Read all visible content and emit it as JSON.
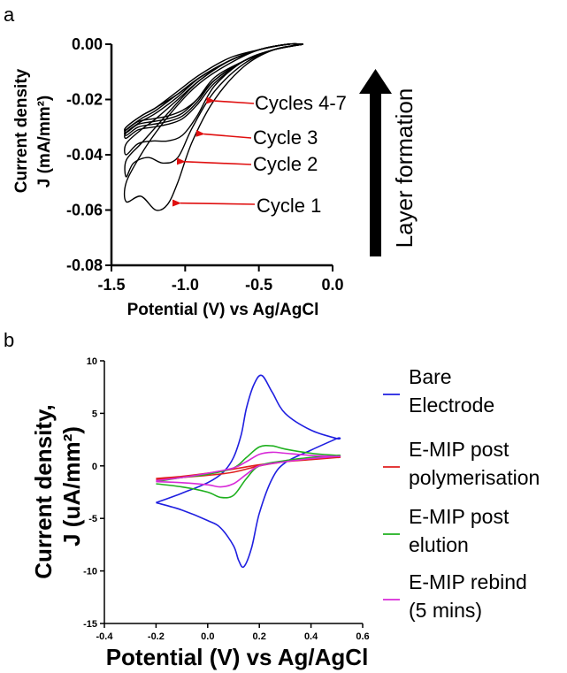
{
  "panels": {
    "a": {
      "letter": "a",
      "annotations": {
        "cycles_4_7": "Cycles 4-7",
        "cycle_3": "Cycle 3",
        "cycle_2": "Cycle 2",
        "cycle_1": "Cycle 1"
      },
      "layer_formation": "Layer formation"
    },
    "b": {
      "letter": "b"
    }
  },
  "chart_data": [
    {
      "type": "line",
      "panel": "a",
      "xlabel": "Potential (V) vs Ag/AgCl",
      "ylabel": "Current density J (mA/mm²)",
      "ylabel_line1": "Current density",
      "ylabel_line2": "J (mA/mm²)",
      "xlim": [
        -1.5,
        0.0
      ],
      "ylim": [
        -0.08,
        0.0
      ],
      "xticks": [
        -1.5,
        -1.0,
        -0.5,
        0.0
      ],
      "xtick_labels": [
        "-1.5",
        "-1.0",
        "-0.5",
        "0.0"
      ],
      "yticks": [
        0.0,
        -0.02,
        -0.04,
        -0.06,
        -0.08
      ],
      "ytick_labels": [
        "0.00",
        "-0.02",
        "-0.04",
        "-0.06",
        "-0.08"
      ],
      "grid": false,
      "series_color": "#000000",
      "series": [
        {
          "x": [
            -0.2,
            -0.4,
            -0.6,
            -0.8,
            -0.95,
            -1.05,
            -1.12,
            -1.2,
            -1.3,
            -1.4,
            -1.4,
            -1.3,
            -1.2,
            -1.05,
            -0.9,
            -0.7,
            -0.5,
            -0.3,
            -0.2
          ],
          "y": [
            0.0,
            -0.002,
            -0.008,
            -0.02,
            -0.035,
            -0.05,
            -0.058,
            -0.06,
            -0.055,
            -0.057,
            -0.05,
            -0.04,
            -0.032,
            -0.022,
            -0.014,
            -0.007,
            -0.002,
            0.0,
            0.0
          ]
        },
        {
          "x": [
            -0.2,
            -0.4,
            -0.6,
            -0.8,
            -0.95,
            -1.05,
            -1.15,
            -1.25,
            -1.35,
            -1.4,
            -1.4,
            -1.3,
            -1.2,
            -1.05,
            -0.9,
            -0.7,
            -0.5,
            -0.3,
            -0.2
          ],
          "y": [
            0.0,
            -0.002,
            -0.007,
            -0.017,
            -0.03,
            -0.041,
            -0.043,
            -0.041,
            -0.043,
            -0.048,
            -0.042,
            -0.036,
            -0.03,
            -0.021,
            -0.013,
            -0.006,
            -0.002,
            0.0,
            0.0
          ]
        },
        {
          "x": [
            -0.2,
            -0.4,
            -0.6,
            -0.8,
            -0.92,
            -1.02,
            -1.12,
            -1.22,
            -1.32,
            -1.4,
            -1.4,
            -1.3,
            -1.2,
            -1.05,
            -0.9,
            -0.7,
            -0.5,
            -0.3,
            -0.2
          ],
          "y": [
            0.0,
            -0.002,
            -0.006,
            -0.015,
            -0.026,
            -0.033,
            -0.035,
            -0.035,
            -0.036,
            -0.04,
            -0.036,
            -0.031,
            -0.027,
            -0.02,
            -0.013,
            -0.006,
            -0.002,
            0.0,
            0.0
          ]
        },
        {
          "x": [
            -0.2,
            -0.4,
            -0.6,
            -0.8,
            -0.92,
            -1.02,
            -1.12,
            -1.22,
            -1.32,
            -1.4,
            -1.4,
            -1.3,
            -1.2,
            -1.05,
            -0.9,
            -0.7,
            -0.5,
            -0.3,
            -0.2
          ],
          "y": [
            0.0,
            -0.002,
            -0.006,
            -0.014,
            -0.022,
            -0.027,
            -0.029,
            -0.03,
            -0.031,
            -0.034,
            -0.032,
            -0.028,
            -0.025,
            -0.019,
            -0.012,
            -0.006,
            -0.002,
            0.0,
            0.0
          ]
        },
        {
          "x": [
            -0.2,
            -0.4,
            -0.6,
            -0.8,
            -0.92,
            -1.02,
            -1.12,
            -1.22,
            -1.32,
            -1.4,
            -1.4,
            -1.3,
            -1.2,
            -1.05,
            -0.9,
            -0.7,
            -0.5,
            -0.3,
            -0.2
          ],
          "y": [
            0.0,
            -0.002,
            -0.006,
            -0.013,
            -0.021,
            -0.026,
            -0.028,
            -0.029,
            -0.03,
            -0.033,
            -0.031,
            -0.027,
            -0.024,
            -0.018,
            -0.012,
            -0.006,
            -0.002,
            0.0,
            0.0
          ]
        },
        {
          "x": [
            -0.2,
            -0.4,
            -0.6,
            -0.8,
            -0.92,
            -1.02,
            -1.12,
            -1.22,
            -1.32,
            -1.4,
            -1.4,
            -1.3,
            -1.2,
            -1.05,
            -0.9,
            -0.7,
            -0.5,
            -0.3,
            -0.2
          ],
          "y": [
            0.0,
            -0.002,
            -0.006,
            -0.013,
            -0.02,
            -0.025,
            -0.027,
            -0.028,
            -0.029,
            -0.032,
            -0.03,
            -0.026,
            -0.023,
            -0.018,
            -0.012,
            -0.006,
            -0.002,
            0.0,
            0.0
          ]
        },
        {
          "x": [
            -0.2,
            -0.4,
            -0.6,
            -0.8,
            -0.92,
            -1.02,
            -1.12,
            -1.22,
            -1.32,
            -1.4,
            -1.4,
            -1.3,
            -1.2,
            -1.05,
            -0.9,
            -0.7,
            -0.5,
            -0.3,
            -0.2
          ],
          "y": [
            0.0,
            -0.002,
            -0.006,
            -0.012,
            -0.02,
            -0.024,
            -0.026,
            -0.027,
            -0.028,
            -0.031,
            -0.03,
            -0.026,
            -0.023,
            -0.017,
            -0.011,
            -0.005,
            -0.002,
            0.0,
            0.0
          ]
        }
      ],
      "annotation_targets": [
        {
          "label": "Cycles 4-7",
          "x": -0.85,
          "y": -0.0205
        },
        {
          "label": "Cycle 3",
          "x": -0.92,
          "y": -0.0325
        },
        {
          "label": "Cycle 2",
          "x": -1.05,
          "y": -0.0425
        },
        {
          "label": "Cycle 1",
          "x": -1.08,
          "y": -0.0575
        }
      ]
    },
    {
      "type": "line",
      "panel": "b",
      "xlabel": "Potential (V) vs Ag/AgCl",
      "ylabel": "Current density, J (uA/mm²)",
      "ylabel_line1": "Current density,",
      "ylabel_line2": "J (uA/mm²)",
      "xlim": [
        -0.4,
        0.6
      ],
      "ylim": [
        -15,
        10
      ],
      "xticks": [
        -0.4,
        -0.2,
        0.0,
        0.2,
        0.4,
        0.6
      ],
      "xtick_labels": [
        "-0.4",
        "-0.2",
        "0.0",
        "0.2",
        "0.4",
        "0.6"
      ],
      "yticks": [
        10,
        5,
        0,
        -5,
        -10,
        -15
      ],
      "ytick_labels": [
        "10",
        "5",
        "0",
        "-5",
        "-10",
        "-15"
      ],
      "grid": false,
      "legend_position": "right",
      "series": [
        {
          "name": "Bare Electrode",
          "legend_lines": [
            "Bare",
            "Electrode"
          ],
          "color": "#1f1fe0",
          "x": [
            -0.2,
            -0.1,
            0.0,
            0.06,
            0.1,
            0.13,
            0.15,
            0.18,
            0.21,
            0.25,
            0.3,
            0.4,
            0.5,
            0.5,
            0.4,
            0.3,
            0.25,
            0.2,
            0.17,
            0.14,
            0.12,
            0.1,
            0.05,
            0.0,
            -0.1,
            -0.2
          ],
          "y": [
            -3.5,
            -2.6,
            -1.6,
            -0.6,
            0.8,
            3.0,
            5.5,
            7.8,
            8.6,
            7.0,
            5.0,
            3.4,
            2.6,
            2.6,
            1.5,
            0.3,
            -1.2,
            -4.5,
            -7.8,
            -9.6,
            -9.0,
            -7.6,
            -5.9,
            -5.2,
            -4.2,
            -3.5
          ]
        },
        {
          "name": "E-MIP post polymerisation",
          "legend_lines": [
            "E-MIP post",
            "polymerisation"
          ],
          "color": "#e01f1f",
          "x": [
            -0.2,
            -0.1,
            0.0,
            0.1,
            0.2,
            0.3,
            0.4,
            0.5,
            0.5,
            0.4,
            0.3,
            0.2,
            0.1,
            0.0,
            -0.1,
            -0.2
          ],
          "y": [
            -1.2,
            -1.0,
            -0.7,
            -0.3,
            0.1,
            0.4,
            0.6,
            0.8,
            0.8,
            0.7,
            0.4,
            0.0,
            -0.6,
            -0.9,
            -1.1,
            -1.3
          ]
        },
        {
          "name": "E-MIP post elution",
          "legend_lines": [
            "E-MIP post",
            "elution"
          ],
          "color": "#1fb01f",
          "x": [
            -0.2,
            -0.1,
            0.0,
            0.1,
            0.15,
            0.2,
            0.25,
            0.3,
            0.4,
            0.5,
            0.5,
            0.4,
            0.3,
            0.2,
            0.15,
            0.1,
            0.05,
            0.0,
            -0.1,
            -0.2
          ],
          "y": [
            -1.5,
            -1.1,
            -0.8,
            -0.2,
            0.8,
            1.8,
            1.9,
            1.6,
            1.2,
            1.0,
            1.0,
            0.8,
            0.5,
            0.0,
            -1.2,
            -2.8,
            -3.0,
            -2.5,
            -2.0,
            -1.7
          ]
        },
        {
          "name": "E-MIP rebind (5 mins)",
          "legend_lines": [
            "E-MIP rebind",
            "(5 mins)"
          ],
          "color": "#d82ad8",
          "x": [
            -0.2,
            -0.1,
            0.0,
            0.1,
            0.15,
            0.2,
            0.25,
            0.3,
            0.4,
            0.5,
            0.5,
            0.4,
            0.3,
            0.2,
            0.15,
            0.1,
            0.05,
            0.0,
            -0.1,
            -0.2
          ],
          "y": [
            -1.4,
            -1.1,
            -0.7,
            -0.2,
            0.4,
            1.1,
            1.3,
            1.2,
            1.0,
            0.9,
            0.9,
            0.7,
            0.4,
            0.0,
            -0.8,
            -1.7,
            -2.0,
            -1.8,
            -1.6,
            -1.5
          ]
        }
      ]
    }
  ]
}
